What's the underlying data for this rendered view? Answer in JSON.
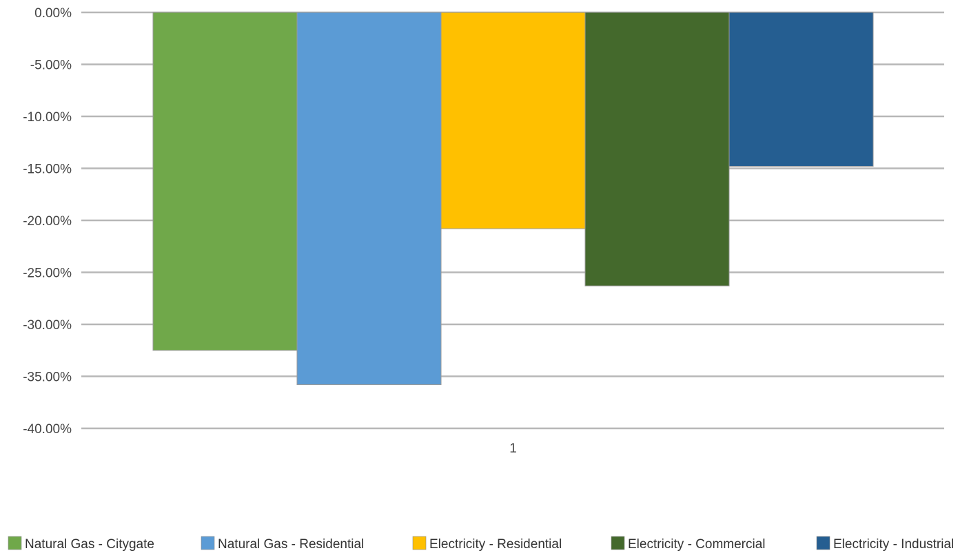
{
  "chart_data": {
    "type": "bar",
    "categories": [
      "1"
    ],
    "series": [
      {
        "name": "Natural Gas - Citygate",
        "values": [
          -32.5
        ],
        "color": "#70a84a"
      },
      {
        "name": "Natural Gas - Residential",
        "values": [
          -35.8
        ],
        "color": "#5b9bd5"
      },
      {
        "name": "Electricity - Residential",
        "values": [
          -20.8
        ],
        "color": "#ffc000"
      },
      {
        "name": "Electricity - Commercial",
        "values": [
          -26.3
        ],
        "color": "#44692c"
      },
      {
        "name": "Electricity - Industrial",
        "values": [
          -14.8
        ],
        "color": "#255e91"
      }
    ],
    "ylim": [
      -40,
      0
    ],
    "yticks": [
      "0.00%",
      "-5.00%",
      "-10.00%",
      "-15.00%",
      "-20.00%",
      "-25.00%",
      "-30.00%",
      "-35.00%",
      "-40.00%"
    ],
    "ytick_values": [
      0,
      -5,
      -10,
      -15,
      -20,
      -25,
      -30,
      -35,
      -40
    ],
    "title": "",
    "xlabel": "",
    "ylabel": "",
    "grid": true,
    "legend_position": "bottom"
  }
}
